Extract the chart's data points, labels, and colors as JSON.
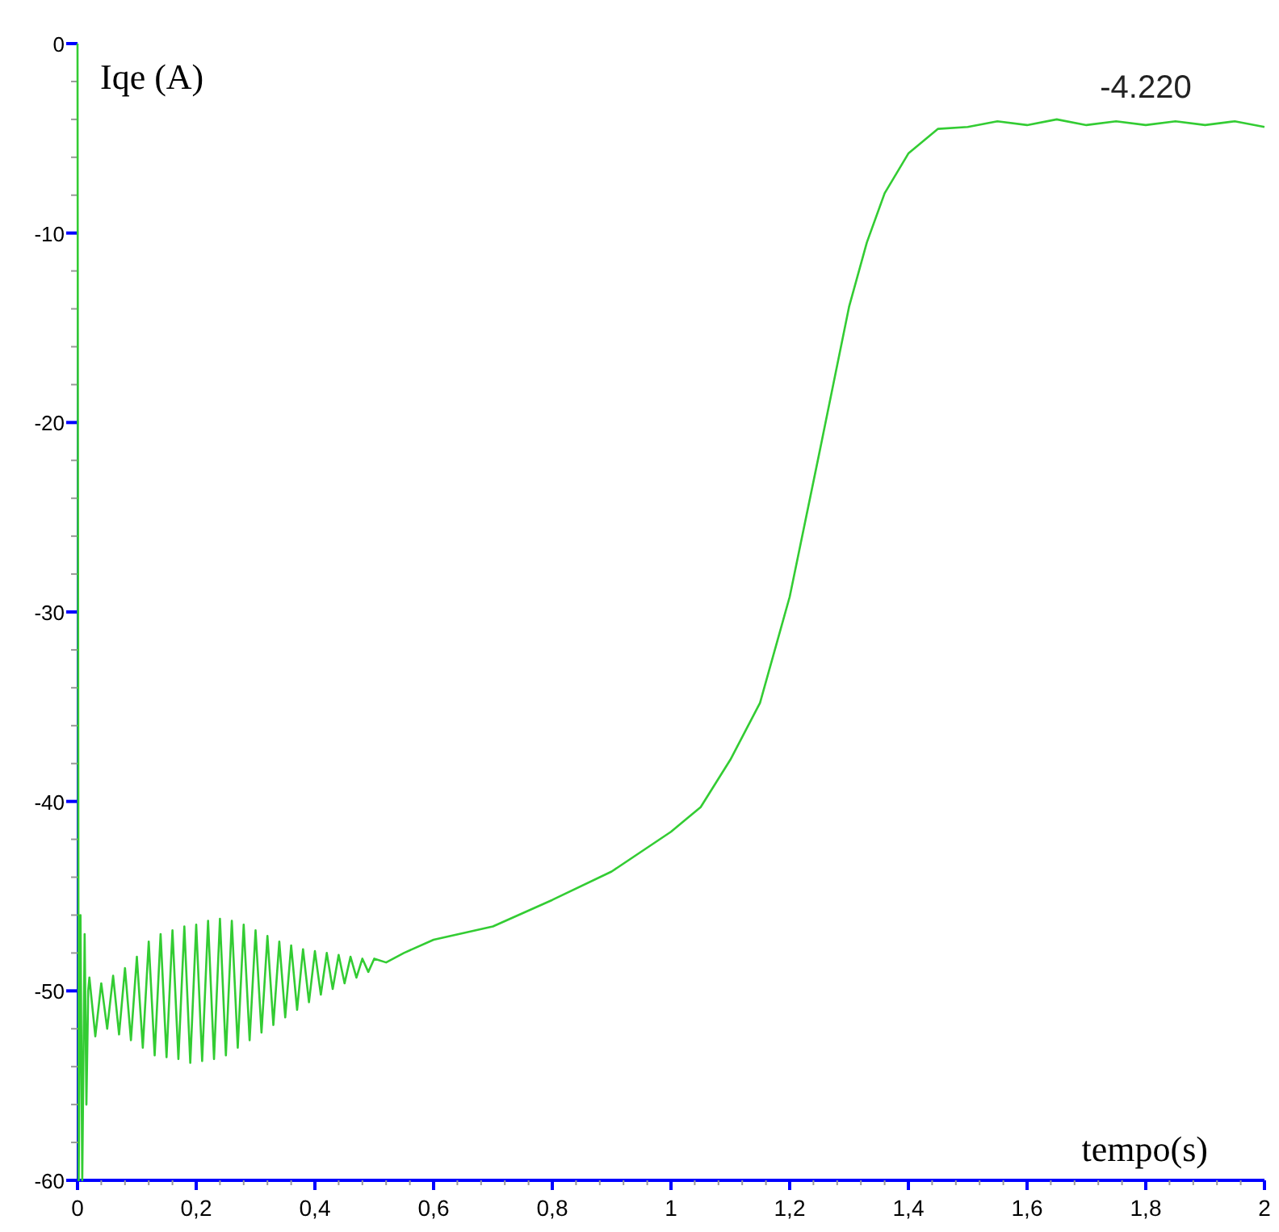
{
  "chart_data": {
    "type": "line",
    "xlabel": "tempo(s)",
    "ylabel": "Iqe (A)",
    "xlim": [
      0,
      2
    ],
    "ylim": [
      -60,
      0
    ],
    "xticks": [
      0,
      {
        "value": 0.04,
        "label": null
      },
      {
        "value": 0.08,
        "label": null
      },
      {
        "value": 0.12,
        "label": null
      },
      {
        "value": 0.16,
        "label": null
      },
      {
        "value": 0.2,
        "label": "0,2"
      },
      {
        "value": 0.24,
        "label": null
      },
      {
        "value": 0.28,
        "label": null
      },
      {
        "value": 0.32,
        "label": null
      },
      {
        "value": 0.36,
        "label": null
      },
      {
        "value": 0.4,
        "label": "0,4"
      },
      {
        "value": 0.44,
        "label": null
      },
      {
        "value": 0.48,
        "label": null
      },
      {
        "value": 0.52,
        "label": null
      },
      {
        "value": 0.56,
        "label": null
      },
      {
        "value": 0.6,
        "label": "0,6"
      },
      {
        "value": 0.64,
        "label": null
      },
      {
        "value": 0.68,
        "label": null
      },
      {
        "value": 0.72,
        "label": null
      },
      {
        "value": 0.76,
        "label": null
      },
      {
        "value": 0.8,
        "label": "0,8"
      },
      {
        "value": 0.84,
        "label": null
      },
      {
        "value": 0.88,
        "label": null
      },
      {
        "value": 0.92,
        "label": null
      },
      {
        "value": 0.96,
        "label": null
      },
      1,
      {
        "value": 1.04,
        "label": null
      },
      {
        "value": 1.08,
        "label": null
      },
      {
        "value": 1.12,
        "label": null
      },
      {
        "value": 1.16,
        "label": null
      },
      {
        "value": 1.2,
        "label": "1,2"
      },
      {
        "value": 1.24,
        "label": null
      },
      {
        "value": 1.28,
        "label": null
      },
      {
        "value": 1.32,
        "label": null
      },
      {
        "value": 1.36,
        "label": null
      },
      {
        "value": 1.4,
        "label": "1,4"
      },
      {
        "value": 1.44,
        "label": null
      },
      {
        "value": 1.48,
        "label": null
      },
      {
        "value": 1.52,
        "label": null
      },
      {
        "value": 1.56,
        "label": null
      },
      {
        "value": 1.6,
        "label": "1,6"
      },
      {
        "value": 1.64,
        "label": null
      },
      {
        "value": 1.68,
        "label": null
      },
      {
        "value": 1.72,
        "label": null
      },
      {
        "value": 1.76,
        "label": null
      },
      {
        "value": 1.8,
        "label": "1,8"
      },
      {
        "value": 1.84,
        "label": null
      },
      {
        "value": 1.88,
        "label": null
      },
      {
        "value": 1.92,
        "label": null
      },
      {
        "value": 1.96,
        "label": null
      },
      2
    ],
    "yticks": [
      -60,
      {
        "value": -58,
        "label": null
      },
      {
        "value": -56,
        "label": null
      },
      {
        "value": -54,
        "label": null
      },
      {
        "value": -52,
        "label": null
      },
      -50,
      {
        "value": -48,
        "label": null
      },
      {
        "value": -46,
        "label": null
      },
      {
        "value": -44,
        "label": null
      },
      {
        "value": -42,
        "label": null
      },
      -40,
      {
        "value": -38,
        "label": null
      },
      {
        "value": -36,
        "label": null
      },
      {
        "value": -34,
        "label": null
      },
      {
        "value": -32,
        "label": null
      },
      -30,
      {
        "value": -28,
        "label": null
      },
      {
        "value": -26,
        "label": null
      },
      {
        "value": -24,
        "label": null
      },
      {
        "value": -22,
        "label": null
      },
      -20,
      {
        "value": -18,
        "label": null
      },
      {
        "value": -16,
        "label": null
      },
      {
        "value": -14,
        "label": null
      },
      {
        "value": -12,
        "label": null
      },
      -10,
      {
        "value": -8,
        "label": null
      },
      {
        "value": -6,
        "label": null
      },
      {
        "value": -4,
        "label": null
      },
      {
        "value": -2,
        "label": null
      },
      0
    ],
    "grid": false,
    "marker": "none",
    "line_style": "solid",
    "annotations": [
      {
        "text": "-4.220",
        "x": 1.8,
        "y": -4.22
      }
    ],
    "series": [
      {
        "color": "#33cc33",
        "x": [
          0,
          0.002,
          0.005,
          0.008,
          0.012,
          0.015,
          0.018,
          0.02,
          0.03,
          0.04,
          0.05,
          0.06,
          0.07,
          0.08,
          0.09,
          0.1,
          0.11,
          0.12,
          0.13,
          0.14,
          0.15,
          0.16,
          0.17,
          0.18,
          0.19,
          0.2,
          0.21,
          0.22,
          0.23,
          0.24,
          0.25,
          0.26,
          0.27,
          0.28,
          0.29,
          0.3,
          0.31,
          0.32,
          0.33,
          0.34,
          0.35,
          0.36,
          0.37,
          0.38,
          0.39,
          0.4,
          0.41,
          0.42,
          0.43,
          0.44,
          0.45,
          0.46,
          0.47,
          0.48,
          0.49,
          0.5,
          0.52,
          0.55,
          0.6,
          0.7,
          0.8,
          0.9,
          1.0,
          1.05,
          1.1,
          1.15,
          1.2,
          1.25,
          1.3,
          1.33,
          1.36,
          1.4,
          1.45,
          1.5,
          1.55,
          1.6,
          1.65,
          1.7,
          1.75,
          1.8,
          1.85,
          1.9,
          1.95,
          2.0
        ],
        "values": [
          0,
          -60,
          -46,
          -60,
          -47,
          -56,
          -50,
          -49.3,
          -52.4,
          -49.6,
          -52,
          -49.2,
          -52.3,
          -48.8,
          -52.6,
          -48.2,
          -53,
          -47.4,
          -53.4,
          -47,
          -53.5,
          -46.8,
          -53.6,
          -46.6,
          -53.8,
          -46.5,
          -53.7,
          -46.3,
          -53.6,
          -46.2,
          -53.4,
          -46.3,
          -53,
          -46.5,
          -52.6,
          -46.8,
          -52.2,
          -47.1,
          -51.8,
          -47.4,
          -51.4,
          -47.6,
          -51,
          -47.8,
          -50.6,
          -47.9,
          -50.2,
          -48,
          -49.9,
          -48.1,
          -49.6,
          -48.2,
          -49.3,
          -48.3,
          -49,
          -48.3,
          -48.5,
          -48,
          -47.3,
          -46.6,
          -45.2,
          -43.7,
          -41.6,
          -40.3,
          -37.8,
          -34.8,
          -29.2,
          -21.6,
          -13.9,
          -10.5,
          -7.9,
          -5.8,
          -4.5,
          -4.4,
          -4.1,
          -4.3,
          -4,
          -4.3,
          -4.1,
          -4.3,
          -4.1,
          -4.3,
          -4.1,
          -4.4
        ]
      }
    ]
  }
}
